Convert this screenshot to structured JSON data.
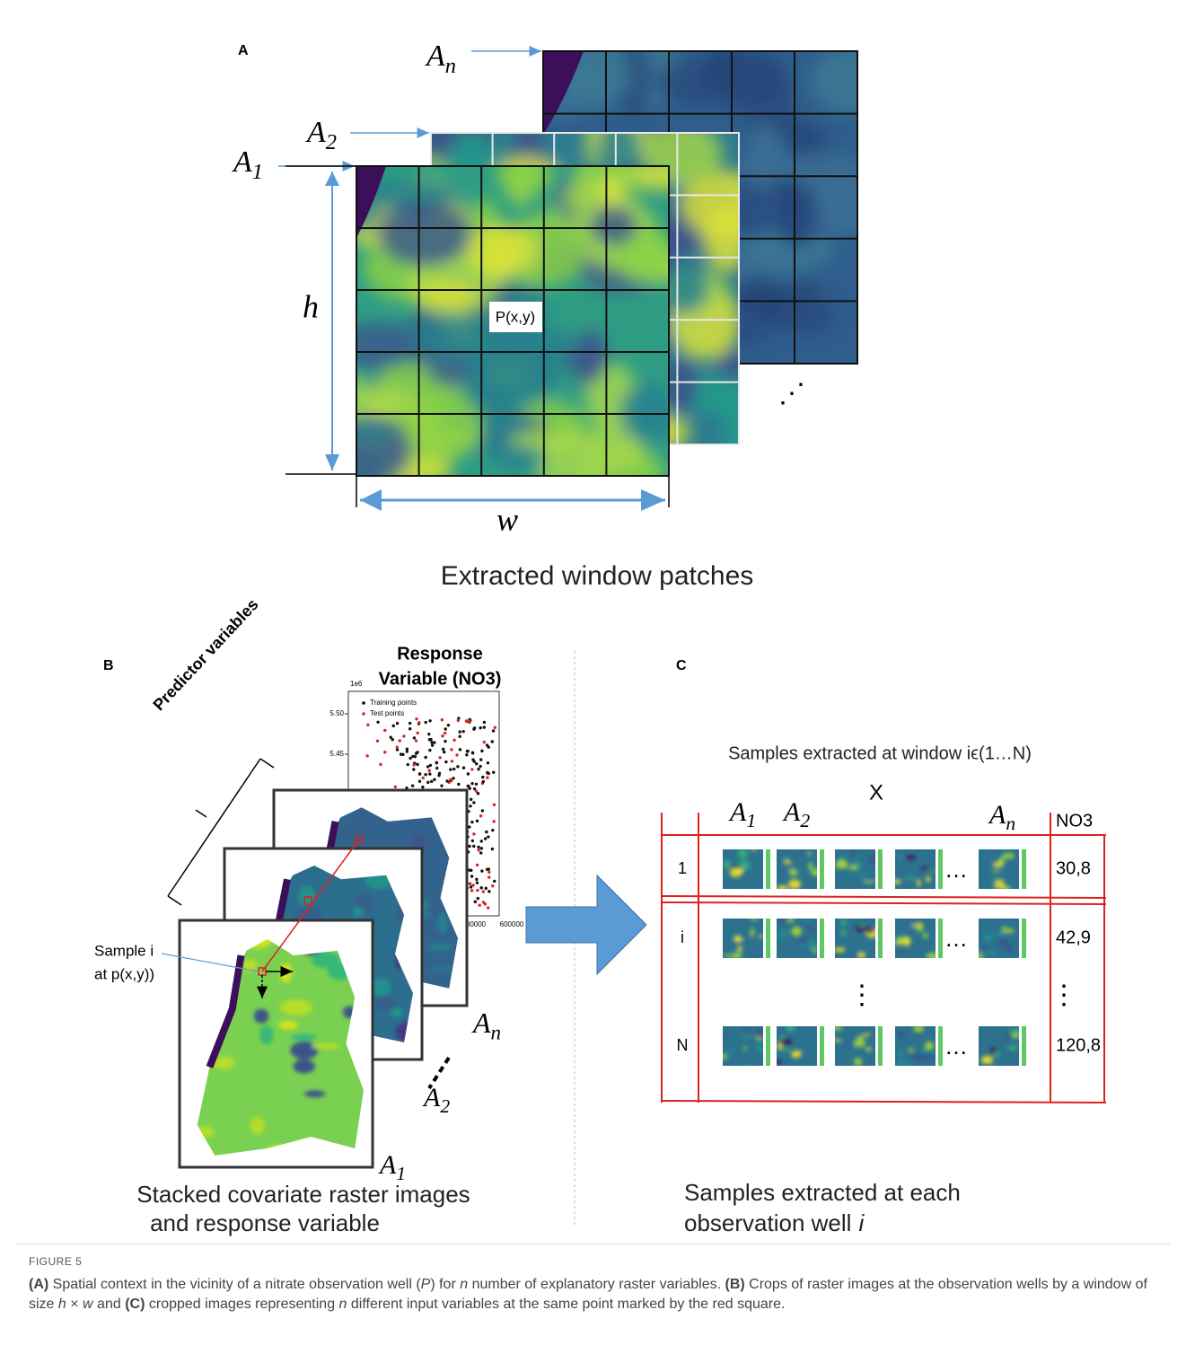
{
  "panel_a": {
    "label": "A",
    "layers": [
      {
        "base": "A",
        "sub": "n"
      },
      {
        "base": "A",
        "sub": "2"
      },
      {
        "base": "A",
        "sub": "1"
      }
    ],
    "height_label": "h",
    "width_label": "w",
    "point_label": "P(x,y)",
    "more": "⋰",
    "caption": "Extracted window patches"
  },
  "panel_b": {
    "label": "B",
    "response_title": [
      "Response",
      "Variable (NO3)"
    ],
    "plot": {
      "scale": "1e6",
      "yticks": [
        "5.50",
        "5.45"
      ],
      "xticks": [
        "00000",
        "600000"
      ],
      "legend": [
        "Training points",
        "Test points"
      ]
    },
    "predictor_label": "Predictor variables",
    "sample_label": [
      "Sample i",
      "at p(x,y))"
    ],
    "layers": [
      {
        "base": "A",
        "sub": "n"
      },
      {
        "base": "A",
        "sub": "2"
      },
      {
        "base": "A",
        "sub": "1"
      }
    ],
    "caption": [
      "Stacked covariate raster images",
      "and response variable"
    ]
  },
  "panel_c": {
    "label": "C",
    "title": "Samples extracted at window iϵ(1…N)",
    "matrix_label": "X",
    "columns": [
      {
        "base": "A",
        "sub": "1"
      },
      {
        "base": "A",
        "sub": "2"
      },
      {
        "base": "A",
        "sub": "n"
      }
    ],
    "target": "NO3",
    "rows": [
      {
        "label": "1",
        "value": "30,8"
      },
      {
        "label": "i",
        "value": "42,9"
      },
      {
        "label": "N",
        "value": "120,8"
      }
    ],
    "more_columns": "…",
    "more_rows": "⋮",
    "caption": [
      "Samples extracted at each",
      "observation well"
    ],
    "caption_var": "i"
  },
  "figure": {
    "label": "FIGURE 5",
    "caption": [
      {
        "text": "(A)",
        "style": "bold"
      },
      {
        "text": " Spatial context in the vicinity of a nitrate observation well ("
      },
      {
        "text": "P",
        "style": "italic"
      },
      {
        "text": ") for "
      },
      {
        "text": "n",
        "style": "italic"
      },
      {
        "text": " number of explanatory raster variables. "
      },
      {
        "text": "(B)",
        "style": "bold"
      },
      {
        "text": " Crops of raster images at the observation wells by a window of size "
      },
      {
        "text": "h",
        "style": "italic"
      },
      {
        "text": " × "
      },
      {
        "text": "w",
        "style": "italic"
      },
      {
        "text": " and "
      },
      {
        "text": "(C)",
        "style": "bold"
      },
      {
        "text": " cropped images representing "
      },
      {
        "text": "n",
        "style": "italic"
      },
      {
        "text": " different input variables at the same point marked by the red square."
      }
    ]
  }
}
